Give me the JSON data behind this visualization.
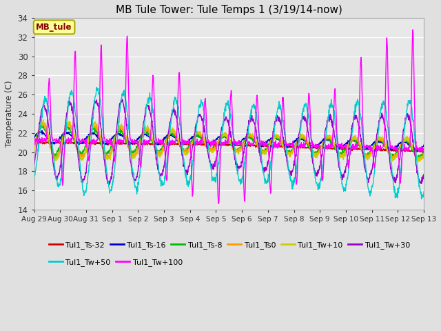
{
  "title": "MB Tule Tower: Tule Temps 1 (3/19/14-now)",
  "ylabel": "Temperature (C)",
  "ylim": [
    14,
    34
  ],
  "yticks": [
    14,
    16,
    18,
    20,
    22,
    24,
    26,
    28,
    30,
    32,
    34
  ],
  "background_color": "#e0e0e0",
  "plot_bg_color": "#e8e8e8",
  "grid_color": "#ffffff",
  "series": [
    {
      "label": "Tul1_Ts-32",
      "color": "#cc0000"
    },
    {
      "label": "Tul1_Ts-16",
      "color": "#0000cc"
    },
    {
      "label": "Tul1_Ts-8",
      "color": "#00bb00"
    },
    {
      "label": "Tul1_Ts0",
      "color": "#ff9900"
    },
    {
      "label": "Tul1_Tw+10",
      "color": "#cccc00"
    },
    {
      "label": "Tul1_Tw+30",
      "color": "#9900cc"
    },
    {
      "label": "Tul1_Tw+50",
      "color": "#00cccc"
    },
    {
      "label": "Tul1_Tw+100",
      "color": "#ff00ff"
    }
  ],
  "xticklabels": [
    "Aug 29",
    "Aug 30",
    "Aug 31",
    "Sep 1",
    "Sep 2",
    "Sep 3",
    "Sep 4",
    "Sep 5",
    "Sep 6",
    "Sep 7",
    "Sep 8",
    "Sep 9",
    "Sep 10",
    "Sep 11",
    "Sep 12",
    "Sep 13"
  ],
  "title_fontsize": 11,
  "legend_box_color": "#ffff99",
  "legend_box_edge": "#aaaa00",
  "legend_text_color": "#880000",
  "annotation_text": "MB_tule"
}
